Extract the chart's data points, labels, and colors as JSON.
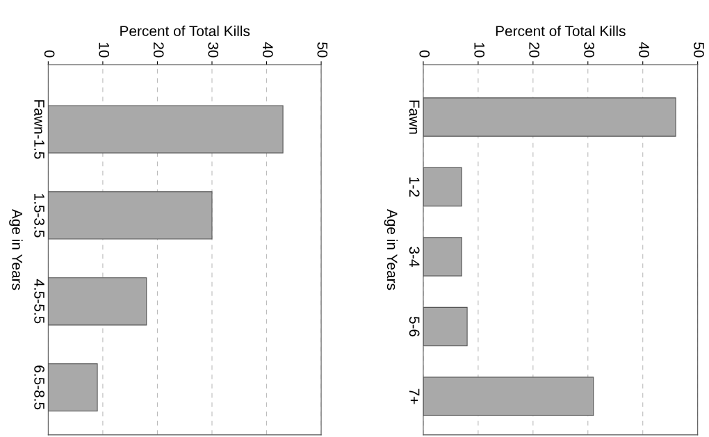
{
  "chart_data": [
    {
      "type": "bar",
      "orientation": "horizontal",
      "xlabel": "Percent of Total Kills",
      "ylabel": "Age in Years",
      "categories": [
        "Fawn-1.5",
        "1.5-3.5",
        "4.5-5.5",
        "6.5-8.5"
      ],
      "values": [
        43,
        30,
        18,
        9
      ],
      "color": "#a9a9a9",
      "xlim": [
        0,
        50
      ],
      "xticks": [
        0,
        10,
        20,
        30,
        40,
        50
      ],
      "grid": "x"
    },
    {
      "type": "bar",
      "orientation": "horizontal",
      "xlabel": "Percent of Total Kills",
      "ylabel": "Age in Years",
      "categories": [
        "Fawn",
        "1-2",
        "3-4",
        "5-6",
        "7+"
      ],
      "values": [
        46,
        7,
        7,
        8,
        31
      ],
      "color": "#a9a9a9",
      "xlim": [
        0,
        50
      ],
      "xticks": [
        0,
        10,
        20,
        30,
        40,
        50
      ],
      "grid": "x"
    }
  ]
}
